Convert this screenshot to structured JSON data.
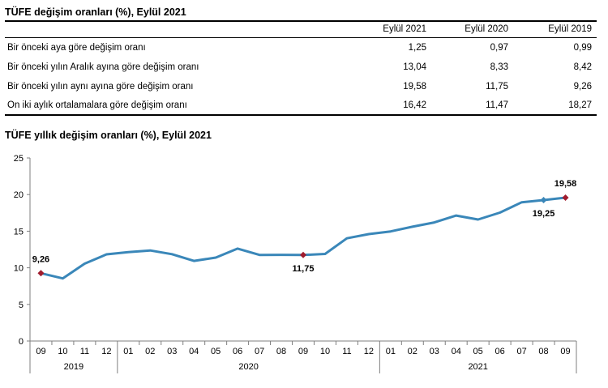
{
  "table": {
    "title": "TÜFE değişim oranları (%), Eylül 2021",
    "columns": [
      "Eylül 2021",
      "Eylül 2020",
      "Eylül 2019"
    ],
    "rows": [
      {
        "label": "Bir önceki aya göre değişim oranı",
        "values": [
          "1,25",
          "0,97",
          "0,99"
        ]
      },
      {
        "label": "Bir önceki yılın Aralık ayına göre değişim oranı",
        "values": [
          "13,04",
          "8,33",
          "8,42"
        ]
      },
      {
        "label": "Bir önceki yılın aynı ayına göre değişim oranı",
        "values": [
          "19,58",
          "11,75",
          "9,26"
        ]
      },
      {
        "label": "On iki aylık ortalamalara göre değişim oranı",
        "values": [
          "16,42",
          "11,47",
          "18,27"
        ]
      }
    ]
  },
  "colors": {
    "line": "#3a87b9",
    "marker": "#a01c2e",
    "marker_alt": "#3a87b9",
    "axis": "#7f7f7f"
  },
  "chart_data": {
    "type": "line",
    "title": "TÜFE yıllık değişim oranları (%), Eylül 2021",
    "x": [
      "09",
      "10",
      "11",
      "12",
      "01",
      "02",
      "03",
      "04",
      "05",
      "06",
      "07",
      "08",
      "09",
      "10",
      "11",
      "12",
      "01",
      "02",
      "03",
      "04",
      "05",
      "06",
      "07",
      "08",
      "09"
    ],
    "year_groups": [
      {
        "label": "2019",
        "start": 0,
        "end": 3
      },
      {
        "label": "2020",
        "start": 4,
        "end": 15
      },
      {
        "label": "2021",
        "start": 16,
        "end": 24
      }
    ],
    "series": [
      {
        "values": [
          9.26,
          8.55,
          10.56,
          11.84,
          12.15,
          12.37,
          11.86,
          10.94,
          11.39,
          12.62,
          11.76,
          11.77,
          11.75,
          11.89,
          14.03,
          14.6,
          14.97,
          15.61,
          16.19,
          17.14,
          16.59,
          17.53,
          18.95,
          19.25,
          19.58
        ]
      }
    ],
    "annotations": [
      {
        "index": 0,
        "text": "9,26",
        "place": "above"
      },
      {
        "index": 12,
        "text": "11,75",
        "place": "below"
      },
      {
        "index": 23,
        "text": "19,25",
        "place": "below"
      },
      {
        "index": 24,
        "text": "19,58",
        "place": "above"
      }
    ],
    "highlight_markers": [
      {
        "index": 0,
        "color": "marker"
      },
      {
        "index": 12,
        "color": "marker"
      },
      {
        "index": 23,
        "color": "marker_alt"
      },
      {
        "index": 24,
        "color": "marker"
      }
    ],
    "yticks": [
      "0",
      "5",
      "10",
      "15",
      "20",
      "25"
    ],
    "ylim": [
      0,
      25
    ],
    "grid": false
  }
}
